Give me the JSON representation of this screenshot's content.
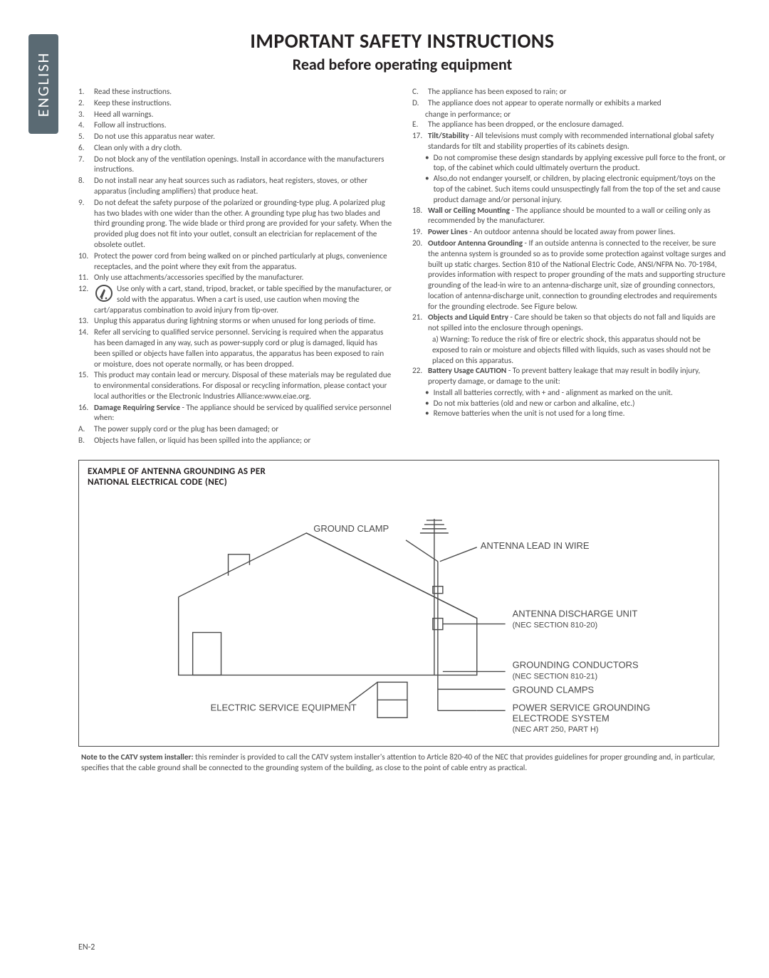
{
  "sidebar": {
    "label": "ENGLISH"
  },
  "title": "IMPORTANT SAFETY INSTRUCTIONS",
  "subtitle": "Read before operating equipment",
  "left_items": [
    {
      "n": "1.",
      "t": "Read these instructions."
    },
    {
      "n": "2.",
      "t": "Keep these instructions."
    },
    {
      "n": "3.",
      "t": "Heed all warnings."
    },
    {
      "n": "4.",
      "t": "Follow all instructions."
    },
    {
      "n": "5.",
      "t": "Do not use this apparatus near water."
    },
    {
      "n": "6.",
      "t": "Clean only with a dry cloth."
    },
    {
      "n": "7.",
      "t": "Do not block any of the ventilation openings. Install in accordance with the manufacturers instructions."
    },
    {
      "n": "8.",
      "t": "Do not install near any heat sources such as radiators, heat registers, stoves, or other apparatus (including amplifiers) that produce heat."
    },
    {
      "n": "9.",
      "t": "Do not defeat the safety purpose of the polarized or grounding-type plug. A polarized plug has two blades with one wider than the other. A grounding type plug has two blades and third grounding prong. The wide blade or third prong are provided for your safety. When the provided plug does not fit into your outlet, consult an electrician for replacement of the obsolete outlet."
    },
    {
      "n": "10.",
      "t": "Protect the power cord from being walked on or pinched particularly at plugs, convenience receptacles, and the point where they exit from the apparatus."
    },
    {
      "n": "11.",
      "t": "Only use attachments/accessories specified by the manufacturer."
    },
    {
      "n": "12.",
      "t": "Use only with a cart, stand, tripod, bracket, or table specified by the manufacturer, or sold with the apparatus. When a cart is used, use caution when moving the cart/apparatus combination to avoid injury from tip-over.",
      "icon": true
    },
    {
      "n": "13.",
      "t": "Unplug this apparatus during lightning storms or when unused for long periods of time."
    },
    {
      "n": "14.",
      "t": "Refer all servicing to qualified service personnel. Servicing is required when the apparatus has been damaged in any way, such as power-supply cord or plug is damaged, liquid has been spilled or objects have fallen into apparatus, the apparatus has been exposed to rain or moisture, does not operate normally, or has been dropped."
    },
    {
      "n": "15.",
      "t": "This product may contain lead or mercury. Disposal of these materials may be regulated due to environmental considerations. For disposal or recycling information, please contact your local authorities or the Electronic Industries Alliance:www.eiae.org."
    }
  ],
  "left_16": {
    "n": "16.",
    "label": "Damage Requiring Service",
    "rest": " - The appliance should be serviced by qualified service personnel when:"
  },
  "left_A": {
    "n": "A.",
    "t": "The power supply cord or the plug has been damaged; or"
  },
  "left_B": {
    "n": "B.",
    "t": "Objects have fallen, or liquid has been spilled into the appliance; or"
  },
  "right_C": {
    "n": "C.",
    "t": "The appliance has been exposed to rain; or"
  },
  "right_D": {
    "n": "D.",
    "t": "The appliance does not appear to operate normally or exhibits a marked",
    "t2": "change in performance; or"
  },
  "right_E": {
    "n": "E.",
    "t": "The appliance has been dropped, or the enclosure damaged."
  },
  "r17": {
    "n": "17.",
    "label": "Tilt/Stability",
    "rest": " - All televisions must comply with recommended international global safety standards for tilt and stability properties of its cabinets design."
  },
  "r17b1": "Do not compromise these design standards by applying excessive pull force to the front, or top, of the cabinet which could ultimately overturn the product.",
  "r17b2": "Also,do not endanger yourself, or children, by placing electronic equipment/toys on the top of the cabinet. Such items could unsuspectingly fall from the top of the set and cause product damage and/or personal injury.",
  "r18": {
    "n": "18.",
    "label": "Wall or Ceiling Mounting",
    "rest": " - The appliance should be mounted to a wall or ceiling only as recommended by the manufacturer."
  },
  "r19": {
    "n": "19.",
    "label": "Power Lines",
    "rest": " - An outdoor antenna should be located away from power lines."
  },
  "r20": {
    "n": "20.",
    "label": "Outdoor Antenna Grounding",
    "rest": " - If an outside antenna is connected to the receiver, be sure the antenna system is grounded so as to provide some protection against voltage surges and built up static charges. Section 810 of the National Electric Code, ANSI/NFPA No. 70-1984, provides information with respect to proper grounding of the mats and supporting structure grounding of the lead-in wire to an antenna-discharge unit, size of grounding connectors, location of antenna-discharge unit, connection to grounding electrodes and requirements for the grounding electrode. See Figure below."
  },
  "r21": {
    "n": "21.",
    "label": "Objects and Liquid Entry",
    "rest": " - Care should be taken so that objects do not fall and liquids are not spilled into the enclosure through openings."
  },
  "r21a": "a) Warning: To reduce the risk of fire or electric shock, this apparatus should not be exposed to rain or moisture and objects filled with liquids, such as vases should not be placed on this apparatus.",
  "r22": {
    "n": "22.",
    "label": "Battery Usage CAUTION",
    "rest": " - To prevent battery leakage that may result in bodily injury, property damage, or damage to the unit:"
  },
  "r22b1": "Install all batteries correctly, with + and - alignment as marked on the unit.",
  "r22b2": "Do not mix batteries (old and new or carbon and alkaline, etc.)",
  "r22b3": "Remove batteries when the unit is not used for a long time.",
  "figure": {
    "title": "EXAMPLE OF ANTENNA GROUNDING AS PER",
    "subtitle": "NATIONAL ELECTRICAL CODE (NEC)",
    "labels": {
      "ground_clamp_top": "GROUND CLAMP",
      "antenna_lead": "ANTENNA LEAD IN WIRE",
      "discharge_unit": "ANTENNA DISCHARGE UNIT",
      "discharge_sub": "(NEC SECTION 810-20)",
      "grounding_conductors": "GROUNDING CONDUCTORS",
      "grounding_conductors_sub": "(NEC SECTION 810-21)",
      "ground_clamps": "GROUND CLAMPS",
      "electric_service": "ELECTRIC SERVICE EQUIPMENT",
      "power_service1": "POWER SERVICE GROUNDING",
      "power_service2": "ELECTRODE SYSTEM",
      "power_service3": "(NEC ART 250, PART H)"
    }
  },
  "note": {
    "bold": "Note to the CATV system installer:",
    "rest": " this reminder is provided to call the CATV system installer's attention to Article 820-40 of the NEC that provides guidelines for proper grounding and, in particular, specifies that the cable ground shall be connected to the grounding system of the building, as close to the point of cable entry as practical."
  },
  "page": "EN-2"
}
